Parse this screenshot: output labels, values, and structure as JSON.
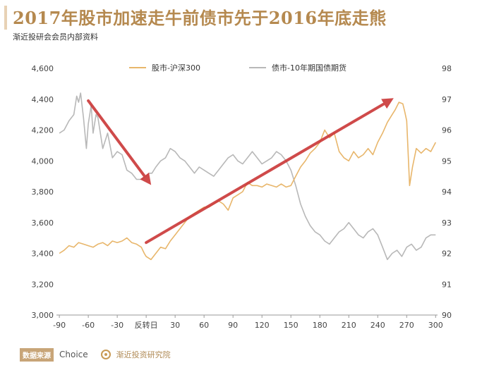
{
  "header": {
    "title": "2017年股市加速走牛前债市先于2016年底走熊",
    "subtitle": "渐近投研会会员内部资料"
  },
  "footer": {
    "source_label": "数据来源",
    "source_value": "Choice",
    "logo_text": "渐近投资研究院"
  },
  "colors": {
    "title": "#b5894f",
    "accent_bar": "#e8d2b5",
    "stock": "#e8b66b",
    "bond": "#b8b8b8",
    "arrow": "#cc3b3b",
    "source_bg": "#c8a578"
  },
  "chart_data": {
    "type": "line",
    "title": "",
    "xlabel": "",
    "ylabel": "",
    "x_ticks": [
      "-90",
      "-60",
      "-30",
      "反转日",
      "30",
      "60",
      "90",
      "120",
      "150",
      "180",
      "210",
      "240",
      "270",
      "300"
    ],
    "x_tick_values": [
      -90,
      -60,
      -30,
      0,
      30,
      60,
      90,
      120,
      150,
      180,
      210,
      240,
      270,
      300
    ],
    "xlim": [
      -93,
      302
    ],
    "y_left_ticks": [
      "3,000",
      "3,200",
      "3,400",
      "3,600",
      "3,800",
      "4,000",
      "4,200",
      "4,400",
      "4,600"
    ],
    "y_left_tick_values": [
      3000,
      3200,
      3400,
      3600,
      3800,
      4000,
      4200,
      4400,
      4600
    ],
    "ylim_left": [
      3000,
      4600
    ],
    "y_right_ticks": [
      "90",
      "91",
      "92",
      "93",
      "94",
      "95",
      "96",
      "97",
      "98"
    ],
    "y_right_tick_values": [
      90,
      91,
      92,
      93,
      94,
      95,
      96,
      97,
      98
    ],
    "ylim_right": [
      90,
      98
    ],
    "legend_position": "top",
    "grid": false,
    "series": [
      {
        "name": "股市-沪深300",
        "axis": "left",
        "x": [
          -90,
          -85,
          -80,
          -75,
          -70,
          -65,
          -60,
          -55,
          -50,
          -45,
          -40,
          -35,
          -30,
          -25,
          -20,
          -15,
          -10,
          -5,
          -2,
          0,
          5,
          10,
          15,
          20,
          25,
          30,
          35,
          40,
          45,
          50,
          55,
          60,
          65,
          70,
          75,
          80,
          85,
          90,
          95,
          100,
          105,
          110,
          115,
          120,
          125,
          130,
          135,
          140,
          145,
          150,
          155,
          160,
          165,
          170,
          175,
          180,
          185,
          190,
          195,
          200,
          205,
          210,
          215,
          220,
          225,
          230,
          235,
          240,
          245,
          250,
          255,
          258,
          262,
          266,
          268,
          270,
          273,
          276,
          280,
          285,
          290,
          295,
          300
        ],
        "values": [
          3400,
          3420,
          3450,
          3440,
          3470,
          3460,
          3450,
          3440,
          3460,
          3470,
          3450,
          3480,
          3470,
          3480,
          3500,
          3470,
          3460,
          3440,
          3400,
          3380,
          3360,
          3400,
          3440,
          3430,
          3480,
          3520,
          3560,
          3600,
          3640,
          3660,
          3680,
          3700,
          3700,
          3720,
          3740,
          3720,
          3680,
          3760,
          3780,
          3800,
          3860,
          3840,
          3840,
          3830,
          3850,
          3840,
          3830,
          3850,
          3830,
          3840,
          3900,
          3960,
          4000,
          4050,
          4080,
          4120,
          4200,
          4150,
          4180,
          4060,
          4020,
          4000,
          4060,
          4020,
          4040,
          4080,
          4040,
          4120,
          4180,
          4250,
          4300,
          4330,
          4380,
          4370,
          4320,
          4260,
          3840,
          3960,
          4080,
          4050,
          4080,
          4060,
          4120
        ]
      },
      {
        "name": "债市-10年期国债期货",
        "axis": "right",
        "x": [
          -90,
          -85,
          -80,
          -75,
          -72,
          -70,
          -68,
          -65,
          -62,
          -60,
          -57,
          -55,
          -52,
          -50,
          -45,
          -40,
          -35,
          -30,
          -25,
          -20,
          -15,
          -10,
          -5,
          0,
          3,
          6,
          10,
          15,
          20,
          25,
          30,
          35,
          40,
          45,
          50,
          55,
          60,
          65,
          70,
          75,
          80,
          85,
          90,
          95,
          100,
          105,
          110,
          115,
          120,
          125,
          130,
          135,
          140,
          145,
          150,
          155,
          160,
          165,
          170,
          175,
          180,
          185,
          190,
          195,
          200,
          205,
          210,
          215,
          220,
          225,
          230,
          235,
          240,
          245,
          250,
          255,
          260,
          265,
          270,
          275,
          280,
          285,
          290,
          295,
          300
        ],
        "values": [
          95.9,
          96.0,
          96.3,
          96.5,
          97.1,
          96.9,
          97.2,
          96.4,
          95.4,
          96.2,
          96.8,
          95.9,
          96.5,
          96.4,
          95.4,
          95.9,
          95.1,
          95.3,
          95.2,
          94.7,
          94.6,
          94.4,
          94.4,
          94.5,
          94.6,
          94.6,
          94.8,
          95.0,
          95.1,
          95.4,
          95.3,
          95.1,
          95.0,
          94.8,
          94.6,
          94.8,
          94.7,
          94.6,
          94.5,
          94.7,
          94.9,
          95.1,
          95.2,
          95.0,
          94.9,
          95.1,
          95.3,
          95.1,
          94.9,
          95.0,
          95.1,
          95.3,
          95.2,
          95.0,
          94.7,
          94.2,
          93.6,
          93.2,
          92.9,
          92.7,
          92.6,
          92.4,
          92.3,
          92.5,
          92.7,
          92.8,
          93.0,
          92.8,
          92.6,
          92.5,
          92.7,
          92.8,
          92.6,
          92.2,
          91.8,
          92.0,
          92.1,
          91.9,
          92.2,
          92.3,
          92.1,
          92.2,
          92.5,
          92.6,
          92.6
        ]
      }
    ],
    "annotations": [
      {
        "type": "arrow",
        "from": {
          "x": -60,
          "y_left": 4390
        },
        "to": {
          "x": 2,
          "y_left": 3870
        }
      },
      {
        "type": "arrow",
        "from": {
          "x": 0,
          "y_left": 3470
        },
        "to": {
          "x": 252,
          "y_left": 4390
        }
      }
    ]
  }
}
